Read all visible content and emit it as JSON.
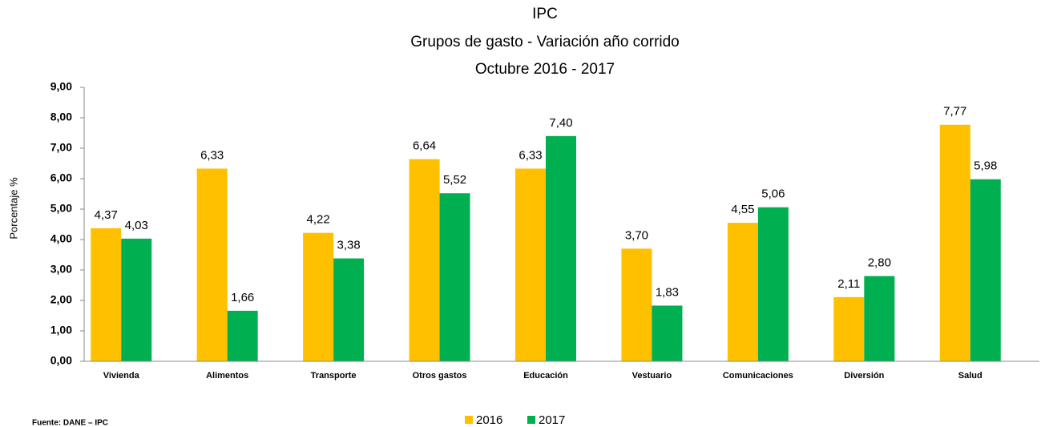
{
  "chart_data": {
    "type": "bar",
    "title": [
      "IPC",
      "Grupos de gasto - Variación año corrido",
      "Octubre 2016 - 2017"
    ],
    "y_label": "Porcentaje %",
    "source": "Fuente: DANE – IPC",
    "categories": [
      "Vivienda",
      "Alimentos",
      "Transporte",
      "Otros gastos",
      "Educación",
      "Vestuario",
      "Comunicaciones",
      "Diversión",
      "Salud"
    ],
    "series": [
      {
        "name": "2016",
        "color": "#FFC000",
        "values": [
          4.37,
          6.33,
          4.22,
          6.64,
          6.33,
          3.7,
          4.55,
          2.11,
          7.77
        ],
        "value_labels": [
          "4,37",
          "6,33",
          "4,22",
          "6,64",
          "6,33",
          "3,70",
          "4,55",
          "2,11",
          "7,77"
        ]
      },
      {
        "name": "2017",
        "color": "#00B050",
        "values": [
          4.03,
          1.66,
          3.38,
          5.52,
          7.4,
          1.83,
          5.06,
          2.8,
          5.98
        ],
        "value_labels": [
          "4,03",
          "1,66",
          "3,38",
          "5,52",
          "7,40",
          "1,83",
          "5,06",
          "2,80",
          "5,98"
        ]
      }
    ],
    "ylim": [
      0,
      9
    ],
    "yticks": [
      {
        "value": 0,
        "label": "0,00"
      },
      {
        "value": 1,
        "label": "1,00"
      },
      {
        "value": 2,
        "label": "2,00"
      },
      {
        "value": 3,
        "label": "3,00"
      },
      {
        "value": 4,
        "label": "4,00"
      },
      {
        "value": 5,
        "label": "5,00"
      },
      {
        "value": 6,
        "label": "6,00"
      },
      {
        "value": 7,
        "label": "7,00"
      },
      {
        "value": 8,
        "label": "8,00"
      },
      {
        "value": 9,
        "label": "9,00"
      }
    ],
    "legend": "bottom"
  }
}
